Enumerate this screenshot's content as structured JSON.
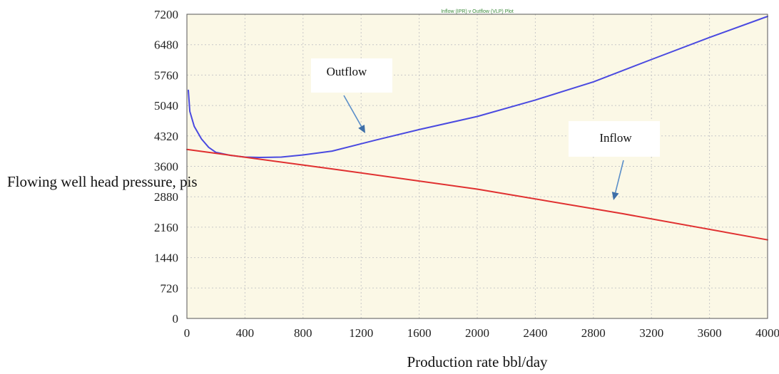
{
  "chart_data": {
    "type": "line",
    "title": "Inflow (IPR) v Outflow (VLP) Plot",
    "xlabel": "Production rate bbl/day",
    "ylabel": "Flowing well head pressure, pis",
    "xlim": [
      0,
      4000
    ],
    "ylim": [
      0,
      7200
    ],
    "x_ticks": [
      "0",
      "400",
      "800",
      "1200",
      "1600",
      "2000",
      "2400",
      "2800",
      "3200",
      "3600",
      "4000"
    ],
    "y_ticks": [
      "0",
      "720",
      "1440",
      "2160",
      "2880",
      "3600",
      "4320",
      "5040",
      "5760",
      "6480",
      "7200"
    ],
    "grid": true,
    "series": [
      {
        "name": "Outflow",
        "color": "#4a4ae0",
        "points": [
          [
            10,
            5400
          ],
          [
            20,
            4900
          ],
          [
            50,
            4550
          ],
          [
            100,
            4250
          ],
          [
            150,
            4050
          ],
          [
            200,
            3930
          ],
          [
            300,
            3860
          ],
          [
            400,
            3820
          ],
          [
            500,
            3810
          ],
          [
            650,
            3820
          ],
          [
            800,
            3870
          ],
          [
            1000,
            3960
          ],
          [
            1300,
            4220
          ],
          [
            1600,
            4470
          ],
          [
            2000,
            4780
          ],
          [
            2400,
            5170
          ],
          [
            2800,
            5600
          ],
          [
            3200,
            6130
          ],
          [
            3600,
            6650
          ],
          [
            4000,
            7150
          ]
        ]
      },
      {
        "name": "Inflow",
        "color": "#e03030",
        "points": [
          [
            0,
            4000
          ],
          [
            1000,
            3540
          ],
          [
            2000,
            3060
          ],
          [
            3000,
            2480
          ],
          [
            4000,
            1860
          ]
        ]
      }
    ],
    "annotations": [
      {
        "text": "Outflow",
        "series": "Outflow"
      },
      {
        "text": "Inflow",
        "series": "Inflow"
      }
    ],
    "colors": {
      "plot_background": "#fbf8e6",
      "grid": "#c8c8c8"
    }
  }
}
